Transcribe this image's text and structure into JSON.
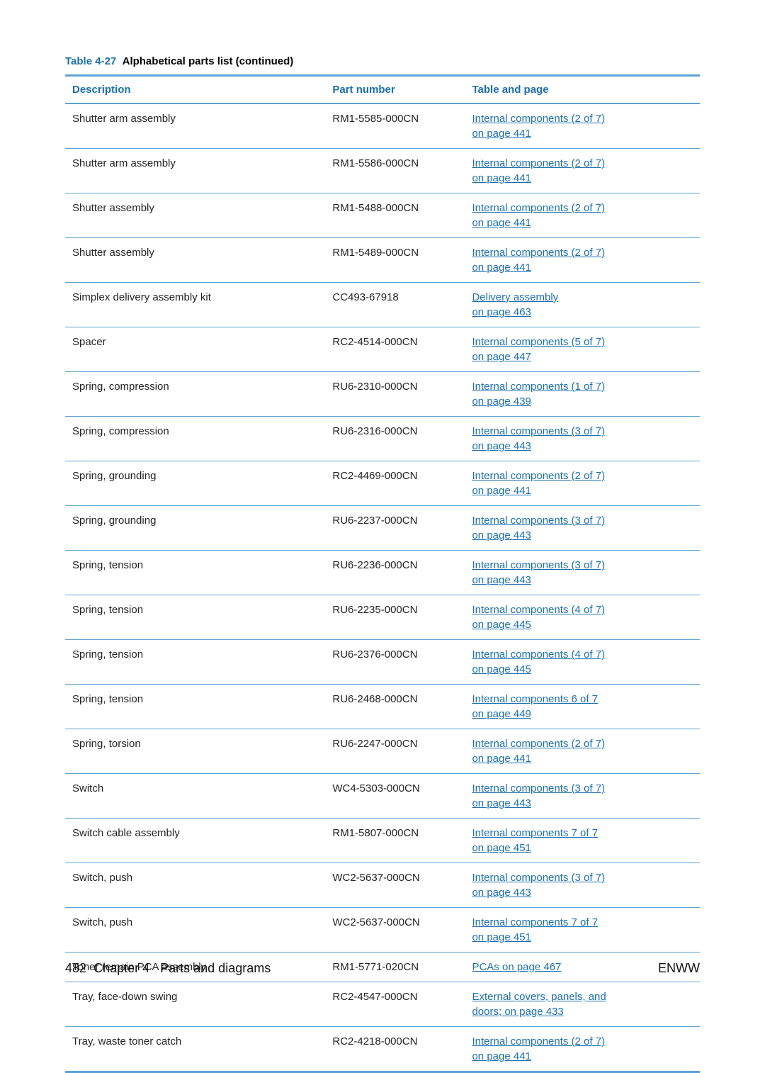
{
  "caption": {
    "number": "Table 4-27",
    "title": "Alphabetical parts list (continued)"
  },
  "columns": {
    "description": "Description",
    "part": "Part number",
    "ref": "Table and page"
  },
  "rows": [
    {
      "desc": "Shutter arm assembly",
      "part": "RM1-5585-000CN",
      "ref1": "Internal components (2 of 7)",
      "ref2": "on page 441"
    },
    {
      "desc": "Shutter arm assembly",
      "part": "RM1-5586-000CN",
      "ref1": "Internal components (2 of 7)",
      "ref2": "on page 441"
    },
    {
      "desc": "Shutter assembly",
      "part": "RM1-5488-000CN",
      "ref1": "Internal components (2 of 7)",
      "ref2": "on page 441"
    },
    {
      "desc": "Shutter assembly",
      "part": "RM1-5489-000CN",
      "ref1": "Internal components (2 of 7)",
      "ref2": "on page 441"
    },
    {
      "desc": "Simplex delivery assembly kit",
      "part": "CC493-67918",
      "ref1": "Delivery assembly",
      "ref2": "on page 463"
    },
    {
      "desc": "Spacer",
      "part": "RC2-4514-000CN",
      "ref1": "Internal components (5 of 7)",
      "ref2": "on page 447"
    },
    {
      "desc": "Spring, compression",
      "part": "RU6-2310-000CN",
      "ref1": "Internal components (1 of 7)",
      "ref2": "on page 439"
    },
    {
      "desc": "Spring, compression",
      "part": "RU6-2316-000CN",
      "ref1": "Internal components (3 of 7)",
      "ref2": "on page 443"
    },
    {
      "desc": "Spring, grounding",
      "part": "RC2-4469-000CN",
      "ref1": "Internal components (2 of 7)",
      "ref2": "on page 441"
    },
    {
      "desc": "Spring, grounding",
      "part": "RU6-2237-000CN",
      "ref1": "Internal components (3 of 7)",
      "ref2": "on page 443"
    },
    {
      "desc": "Spring, tension",
      "part": "RU6-2236-000CN",
      "ref1": "Internal components (3 of 7)",
      "ref2": "on page 443"
    },
    {
      "desc": "Spring, tension",
      "part": "RU6-2235-000CN",
      "ref1": "Internal components (4 of 7)",
      "ref2": "on page 445"
    },
    {
      "desc": "Spring, tension",
      "part": "RU6-2376-000CN",
      "ref1": "Internal components (4 of 7)",
      "ref2": "on page 445"
    },
    {
      "desc": "Spring, tension",
      "part": "RU6-2468-000CN",
      "ref1": "Internal components 6 of 7",
      "ref2": "on page 449"
    },
    {
      "desc": "Spring, torsion",
      "part": "RU6-2247-000CN",
      "ref1": "Internal components (2 of 7)",
      "ref2": "on page 441"
    },
    {
      "desc": "Switch",
      "part": "WC4-5303-000CN",
      "ref1": "Internal components (3 of 7)",
      "ref2": "on page 443"
    },
    {
      "desc": "Switch cable assembly",
      "part": "RM1-5807-000CN",
      "ref1": "Internal components 7 of 7",
      "ref2": "on page 451"
    },
    {
      "desc": "Switch, push",
      "part": "WC2-5637-000CN",
      "ref1": "Internal components (3 of 7)",
      "ref2": "on page 443"
    },
    {
      "desc": "Switch, push",
      "part": "WC2-5637-000CN",
      "ref1": "Internal components 7 of 7",
      "ref2": "on page 451"
    },
    {
      "desc": "Toner remain PCA assembly",
      "part": "RM1-5771-020CN",
      "ref1": "PCAs on page 467",
      "ref2": ""
    },
    {
      "desc": "Tray, face-down swing",
      "part": "RC2-4547-000CN",
      "ref1": "External covers, panels, and",
      "ref2": "doors; on page 433"
    },
    {
      "desc": "Tray, waste toner catch",
      "part": "RC2-4218-000CN",
      "ref1": "Internal components (2 of 7)",
      "ref2": "on page 441"
    }
  ],
  "footer": {
    "page_number": "482",
    "chapter_label": "Chapter 4",
    "chapter_title": "Parts and diagrams",
    "right": "ENWW"
  }
}
